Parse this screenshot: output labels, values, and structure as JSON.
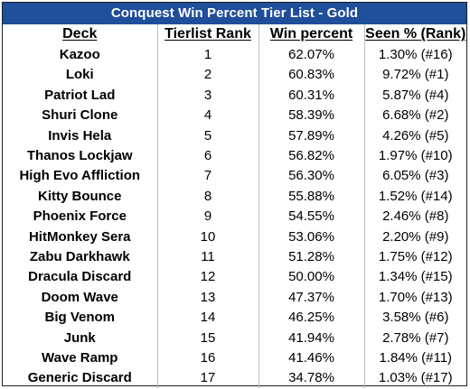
{
  "title": "Conquest Win Percent Tier List - Gold",
  "columns": [
    "Deck",
    "Tierlist Rank",
    "Win percent",
    "Seen % (Rank)"
  ],
  "rows": [
    {
      "deck": "Kazoo",
      "rank": "1",
      "win": "62.07%",
      "seen": "1.30% (#16)"
    },
    {
      "deck": "Loki",
      "rank": "2",
      "win": "60.83%",
      "seen": "9.72% (#1)"
    },
    {
      "deck": "Patriot Lad",
      "rank": "3",
      "win": "60.31%",
      "seen": "5.87% (#4)"
    },
    {
      "deck": "Shuri Clone",
      "rank": "4",
      "win": "58.39%",
      "seen": "6.68% (#2)"
    },
    {
      "deck": "Invis Hela",
      "rank": "5",
      "win": "57.89%",
      "seen": "4.26% (#5)"
    },
    {
      "deck": "Thanos Lockjaw",
      "rank": "6",
      "win": "56.82%",
      "seen": "1.97% (#10)"
    },
    {
      "deck": "High Evo Affliction",
      "rank": "7",
      "win": "56.30%",
      "seen": "6.05% (#3)"
    },
    {
      "deck": "Kitty Bounce",
      "rank": "8",
      "win": "55.88%",
      "seen": "1.52% (#14)"
    },
    {
      "deck": "Phoenix Force",
      "rank": "9",
      "win": "54.55%",
      "seen": "2.46% (#8)"
    },
    {
      "deck": "HitMonkey Sera",
      "rank": "10",
      "win": "53.06%",
      "seen": "2.20% (#9)"
    },
    {
      "deck": "Zabu Darkhawk",
      "rank": "11",
      "win": "51.28%",
      "seen": "1.75% (#12)"
    },
    {
      "deck": "Dracula Discard",
      "rank": "12",
      "win": "50.00%",
      "seen": "1.34% (#15)"
    },
    {
      "deck": "Doom Wave",
      "rank": "13",
      "win": "47.37%",
      "seen": "1.70% (#13)"
    },
    {
      "deck": "Big Venom",
      "rank": "14",
      "win": "46.25%",
      "seen": "3.58% (#6)"
    },
    {
      "deck": "Junk",
      "rank": "15",
      "win": "41.94%",
      "seen": "2.78% (#7)"
    },
    {
      "deck": "Wave Ramp",
      "rank": "16",
      "win": "41.46%",
      "seen": "1.84% (#11)"
    },
    {
      "deck": "Generic Discard",
      "rank": "17",
      "win": "34.78%",
      "seen": "1.03% (#17)"
    }
  ],
  "colors": {
    "title_background": "#1f4e9a",
    "title_text": "#ffffff",
    "border": "#1f1f1f",
    "gridline": "#bfbfbf"
  }
}
